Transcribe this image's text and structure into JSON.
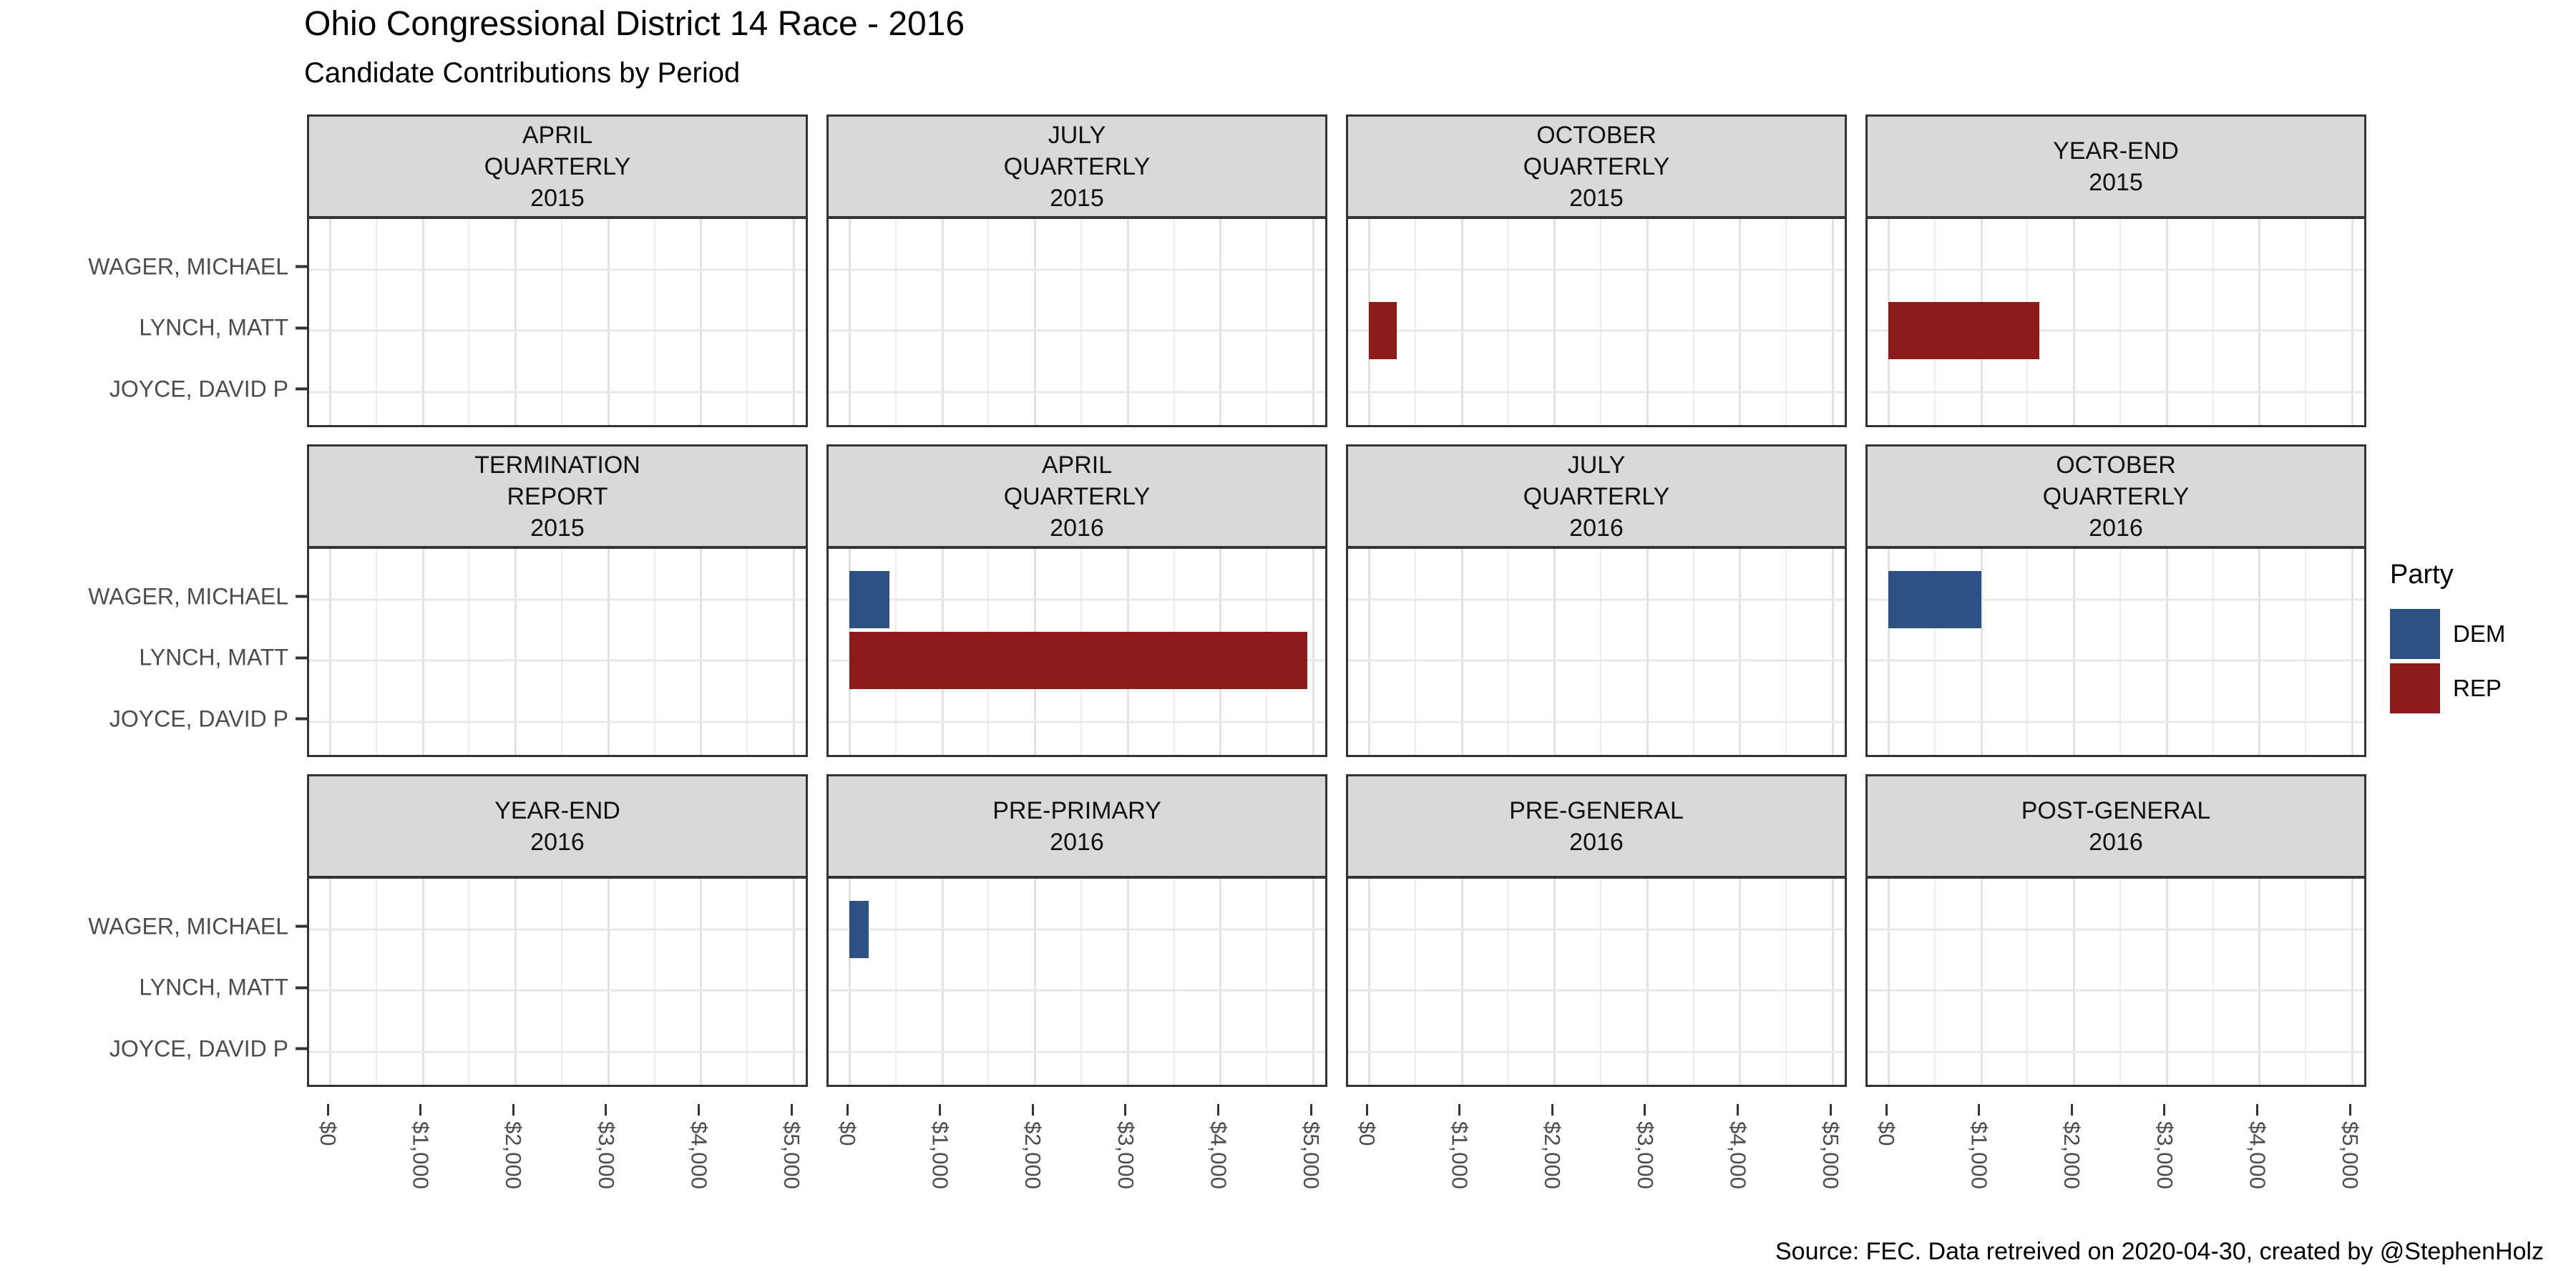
{
  "chart_data": {
    "type": "bar",
    "orientation": "horizontal",
    "title": "Ohio Congressional District 14 Race - 2016",
    "subtitle": "Candidate Contributions by Period",
    "caption": "Source: FEC. Data retreived on 2020-04-30, created by @StephenHolz",
    "facet_grid": {
      "rows": 3,
      "cols": 4
    },
    "categories": [
      "WAGER, MICHAEL",
      "LYNCH, MATT",
      "JOYCE, DAVID P"
    ],
    "x_axis": {
      "ticks": [
        "$0",
        "$1,000",
        "$2,000",
        "$3,000",
        "$4,000",
        "$5,000"
      ],
      "tick_values": [
        0,
        1000,
        2000,
        3000,
        4000,
        5000
      ],
      "min": 0,
      "max": 5000,
      "minor_gridline_step": 500,
      "label_rotation_deg": 90
    },
    "legend": {
      "title": "Party",
      "position": "right",
      "entries": [
        {
          "label": "DEM",
          "color": "#2E5184"
        },
        {
          "label": "REP",
          "color": "#8E1B1B"
        }
      ]
    },
    "grid": "on",
    "colors": {
      "DEM": "#2E5184",
      "REP": "#8E1B1B",
      "strip_fill": "#D9D9D9",
      "panel_border": "#333333",
      "gridline": "#E8E8E8",
      "axis_text": "#4D4D4D"
    },
    "facets": [
      {
        "period": "APRIL QUARTERLY 2015",
        "strip_lines": [
          "APRIL",
          "QUARTERLY",
          "2015"
        ],
        "bars": []
      },
      {
        "period": "JULY QUARTERLY 2015",
        "strip_lines": [
          "JULY",
          "QUARTERLY",
          "2015"
        ],
        "bars": []
      },
      {
        "period": "OCTOBER QUARTERLY 2015",
        "strip_lines": [
          "OCTOBER",
          "QUARTERLY",
          "2015"
        ],
        "bars": [
          {
            "candidate": "LYNCH, MATT",
            "party": "REP",
            "value": 300
          }
        ]
      },
      {
        "period": "YEAR-END 2015",
        "strip_lines": [
          "YEAR-END",
          "2015"
        ],
        "bars": [
          {
            "candidate": "LYNCH, MATT",
            "party": "REP",
            "value": 1630
          }
        ]
      },
      {
        "period": "TERMINATION REPORT 2015",
        "strip_lines": [
          "TERMINATION",
          "REPORT",
          "2015"
        ],
        "bars": []
      },
      {
        "period": "APRIL QUARTERLY 2016",
        "strip_lines": [
          "APRIL",
          "QUARTERLY",
          "2016"
        ],
        "bars": [
          {
            "candidate": "WAGER, MICHAEL",
            "party": "DEM",
            "value": 430
          },
          {
            "candidate": "LYNCH, MATT",
            "party": "REP",
            "value": 4940
          }
        ]
      },
      {
        "period": "JULY QUARTERLY 2016",
        "strip_lines": [
          "JULY",
          "QUARTERLY",
          "2016"
        ],
        "bars": []
      },
      {
        "period": "OCTOBER QUARTERLY 2016",
        "strip_lines": [
          "OCTOBER",
          "QUARTERLY",
          "2016"
        ],
        "bars": [
          {
            "candidate": "WAGER, MICHAEL",
            "party": "DEM",
            "value": 1000
          }
        ]
      },
      {
        "period": "YEAR-END 2016",
        "strip_lines": [
          "YEAR-END",
          "2016"
        ],
        "bars": []
      },
      {
        "period": "PRE-PRIMARY 2016",
        "strip_lines": [
          "PRE-PRIMARY",
          "2016"
        ],
        "bars": [
          {
            "candidate": "WAGER, MICHAEL",
            "party": "DEM",
            "value": 210
          }
        ]
      },
      {
        "period": "PRE-GENERAL 2016",
        "strip_lines": [
          "PRE-GENERAL",
          "2016"
        ],
        "bars": []
      },
      {
        "period": "POST-GENERAL 2016",
        "strip_lines": [
          "POST-GENERAL",
          "2016"
        ],
        "bars": []
      }
    ]
  }
}
